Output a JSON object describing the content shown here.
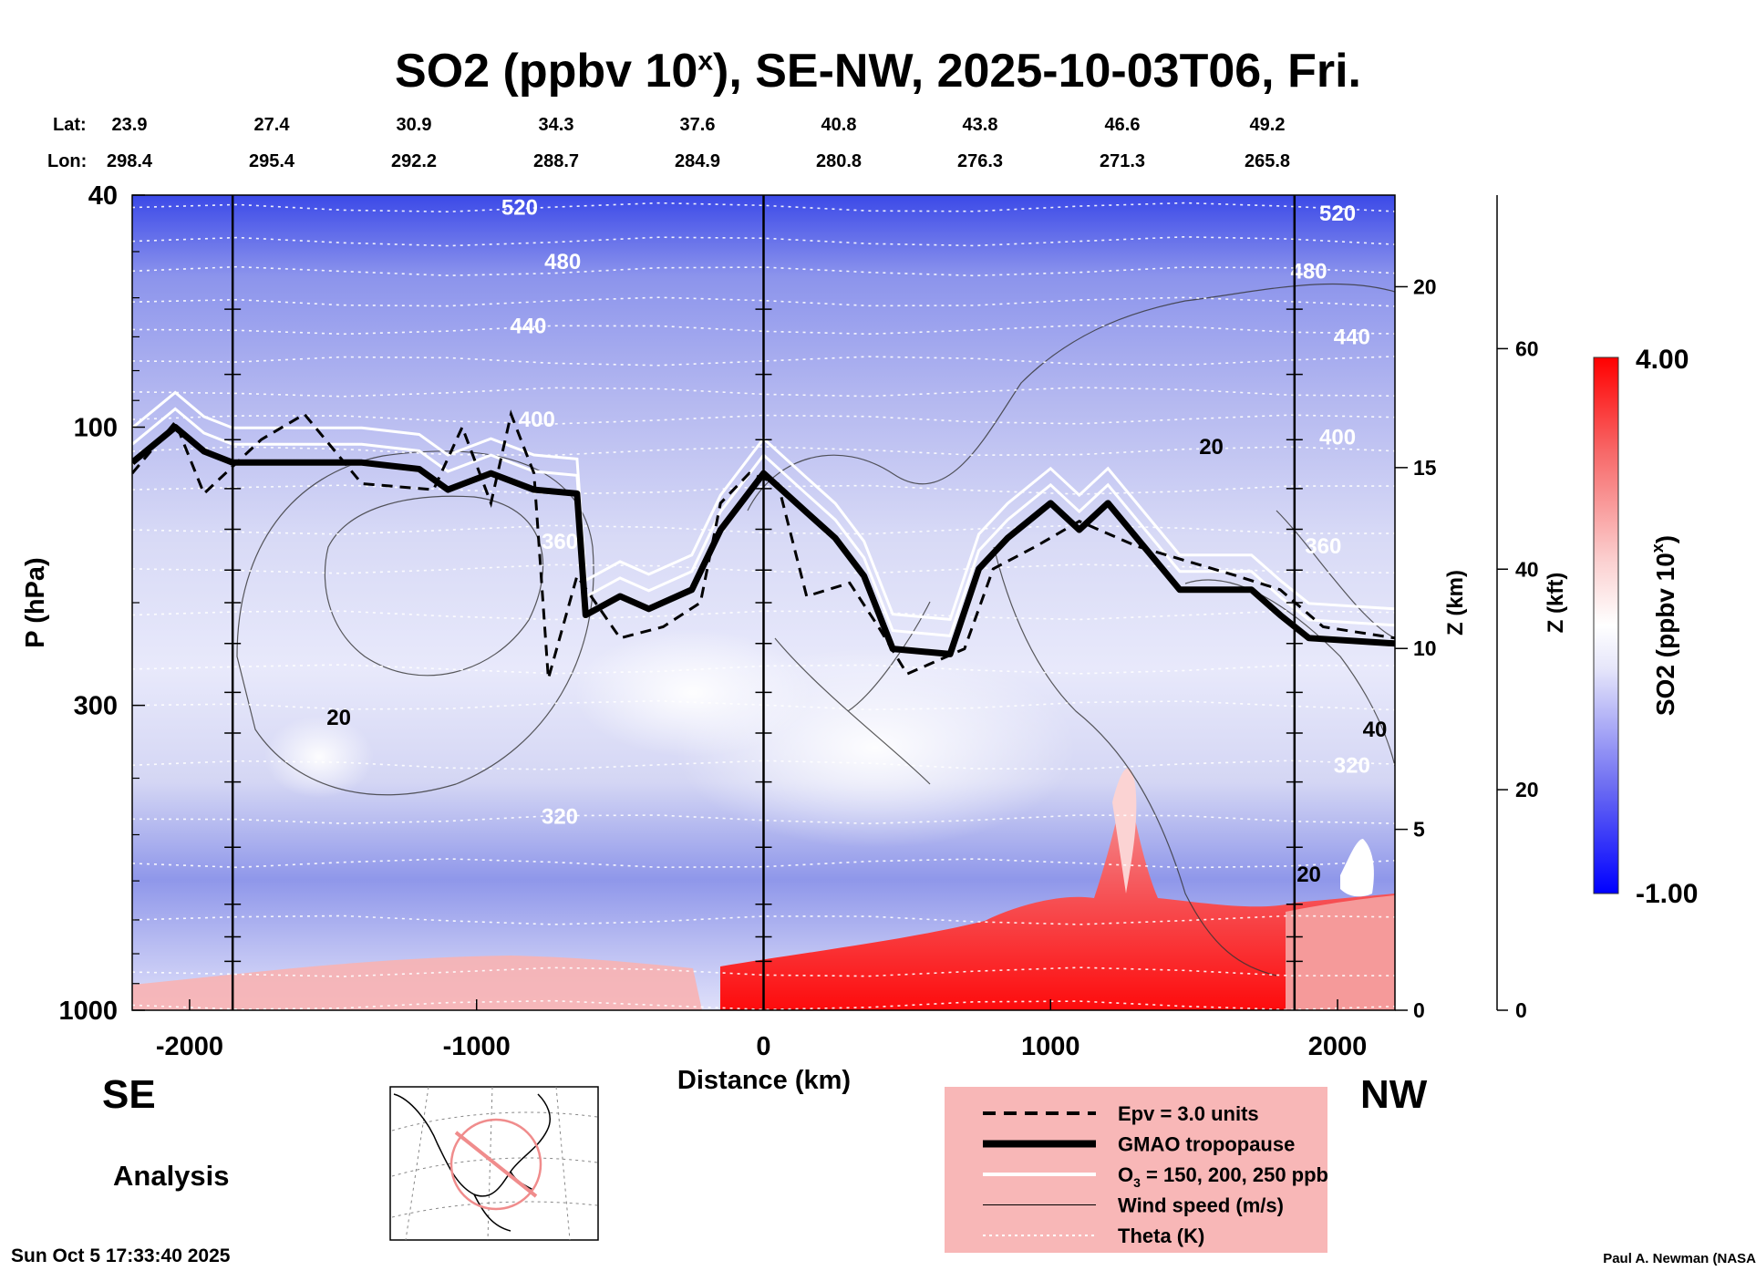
{
  "title_main": "SO2 (ppbv 10",
  "title_sup": "x",
  "title_rest": "), SE-NW, 2025-10-03T06, Fri.",
  "direction_left": "SE",
  "direction_right": "NW",
  "analysis_label": "Analysis",
  "footer_left": "Sun Oct  5 17:33:40 2025",
  "footer_right": "Paul A. Newman (NASA",
  "colors": {
    "min": "#0000ff",
    "mid": "#ffffff",
    "max": "#ff0000"
  },
  "chart_data": {
    "type": "heatmap",
    "title": "SO2 (ppbv 10^x), SE-NW, 2025-10-03T06, Fri.",
    "xlabel": "Distance (km)",
    "ylabel": "P (hPa)",
    "zlabel": "Z (km)",
    "zkft_label": "Z (kft)",
    "colorbar_label": "SO2 (ppbv 10",
    "colorbar_label_sup": "x",
    "colorbar_label_end": ")",
    "colorbar_range": [
      -1.0,
      4.0
    ],
    "colorbar_min_label": "-1.00",
    "colorbar_max_label": "4.00",
    "xlim": [
      -2200,
      2200
    ],
    "ylim_hpa": [
      1000,
      40
    ],
    "x_ticks": [
      -2000,
      -1000,
      0,
      1000,
      2000
    ],
    "y_ticks": [
      40,
      100,
      300,
      1000
    ],
    "z_km_ticks": [
      0,
      5,
      10,
      15,
      20
    ],
    "z_kft_ticks": [
      0,
      20,
      40,
      60
    ],
    "lat_label": "Lat:",
    "lon_label": "Lon:",
    "lat": [
      "23.9",
      "27.4",
      "30.9",
      "34.3",
      "37.6",
      "40.8",
      "43.8",
      "46.6",
      "49.2"
    ],
    "lon": [
      "298.4",
      "295.4",
      "292.2",
      "288.7",
      "284.9",
      "280.8",
      "276.3",
      "271.3",
      "265.8"
    ],
    "vertical_lines_km": [
      -1850,
      0,
      1850
    ],
    "theta_labels": [
      {
        "text": "520",
        "x": -850,
        "p": 42
      },
      {
        "text": "480",
        "x": -700,
        "p": 52
      },
      {
        "text": "440",
        "x": -820,
        "p": 67
      },
      {
        "text": "400",
        "x": -790,
        "p": 97
      },
      {
        "text": "360",
        "x": -710,
        "p": 157
      },
      {
        "text": "320",
        "x": -710,
        "p": 465
      },
      {
        "text": "520",
        "x": 2000,
        "p": 43
      },
      {
        "text": "480",
        "x": 1900,
        "p": 54
      },
      {
        "text": "440",
        "x": 2050,
        "p": 70
      },
      {
        "text": "400",
        "x": 2000,
        "p": 104
      },
      {
        "text": "360",
        "x": 1950,
        "p": 160
      },
      {
        "text": "320",
        "x": 2050,
        "p": 380
      }
    ],
    "wind_labels": [
      {
        "text": "20",
        "x": -1480,
        "p": 315
      },
      {
        "text": "20",
        "x": 1560,
        "p": 108
      },
      {
        "text": "40",
        "x": 2130,
        "p": 330
      },
      {
        "text": "20",
        "x": 1900,
        "p": 585
      }
    ],
    "tropopause": [
      [
        -2200,
        115
      ],
      [
        -2050,
        100
      ],
      [
        -1950,
        110
      ],
      [
        -1850,
        115
      ],
      [
        -1400,
        115
      ],
      [
        -1200,
        118
      ],
      [
        -1100,
        128
      ],
      [
        -950,
        120
      ],
      [
        -800,
        128
      ],
      [
        -650,
        130
      ],
      [
        -620,
        210
      ],
      [
        -500,
        195
      ],
      [
        -400,
        205
      ],
      [
        -250,
        190
      ],
      [
        -150,
        150
      ],
      [
        0,
        120
      ],
      [
        150,
        140
      ],
      [
        250,
        155
      ],
      [
        350,
        180
      ],
      [
        450,
        240
      ],
      [
        650,
        245
      ],
      [
        750,
        175
      ],
      [
        850,
        155
      ],
      [
        1000,
        135
      ],
      [
        1100,
        150
      ],
      [
        1200,
        135
      ],
      [
        1450,
        190
      ],
      [
        1700,
        190
      ],
      [
        1800,
        210
      ],
      [
        1900,
        230
      ],
      [
        2200,
        235
      ]
    ],
    "epv": [
      [
        -2200,
        120
      ],
      [
        -2050,
        98
      ],
      [
        -1950,
        130
      ],
      [
        -1750,
        105
      ],
      [
        -1600,
        95
      ],
      [
        -1400,
        125
      ],
      [
        -1150,
        128
      ],
      [
        -1050,
        100
      ],
      [
        -950,
        135
      ],
      [
        -880,
        95
      ],
      [
        -800,
        120
      ],
      [
        -750,
        270
      ],
      [
        -650,
        180
      ],
      [
        -500,
        230
      ],
      [
        -350,
        220
      ],
      [
        -220,
        200
      ],
      [
        -150,
        135
      ],
      [
        -50,
        120
      ],
      [
        50,
        125
      ],
      [
        150,
        195
      ],
      [
        300,
        185
      ],
      [
        400,
        220
      ],
      [
        500,
        265
      ],
      [
        700,
        240
      ],
      [
        800,
        175
      ],
      [
        950,
        160
      ],
      [
        1100,
        145
      ],
      [
        1300,
        160
      ],
      [
        1650,
        180
      ],
      [
        1800,
        190
      ],
      [
        1950,
        220
      ],
      [
        2200,
        230
      ]
    ],
    "legend": [
      {
        "label": "Epv = 3.0 units",
        "style": "dashed"
      },
      {
        "label": "GMAO tropopause",
        "style": "thick"
      },
      {
        "label": "O",
        "label_sub": "3",
        "label_rest": " = 150, 200, 250 ppb",
        "style": "white"
      },
      {
        "label": "Wind speed (m/s)",
        "style": "thin"
      },
      {
        "label": "Theta (K)",
        "style": "dotted"
      }
    ]
  }
}
